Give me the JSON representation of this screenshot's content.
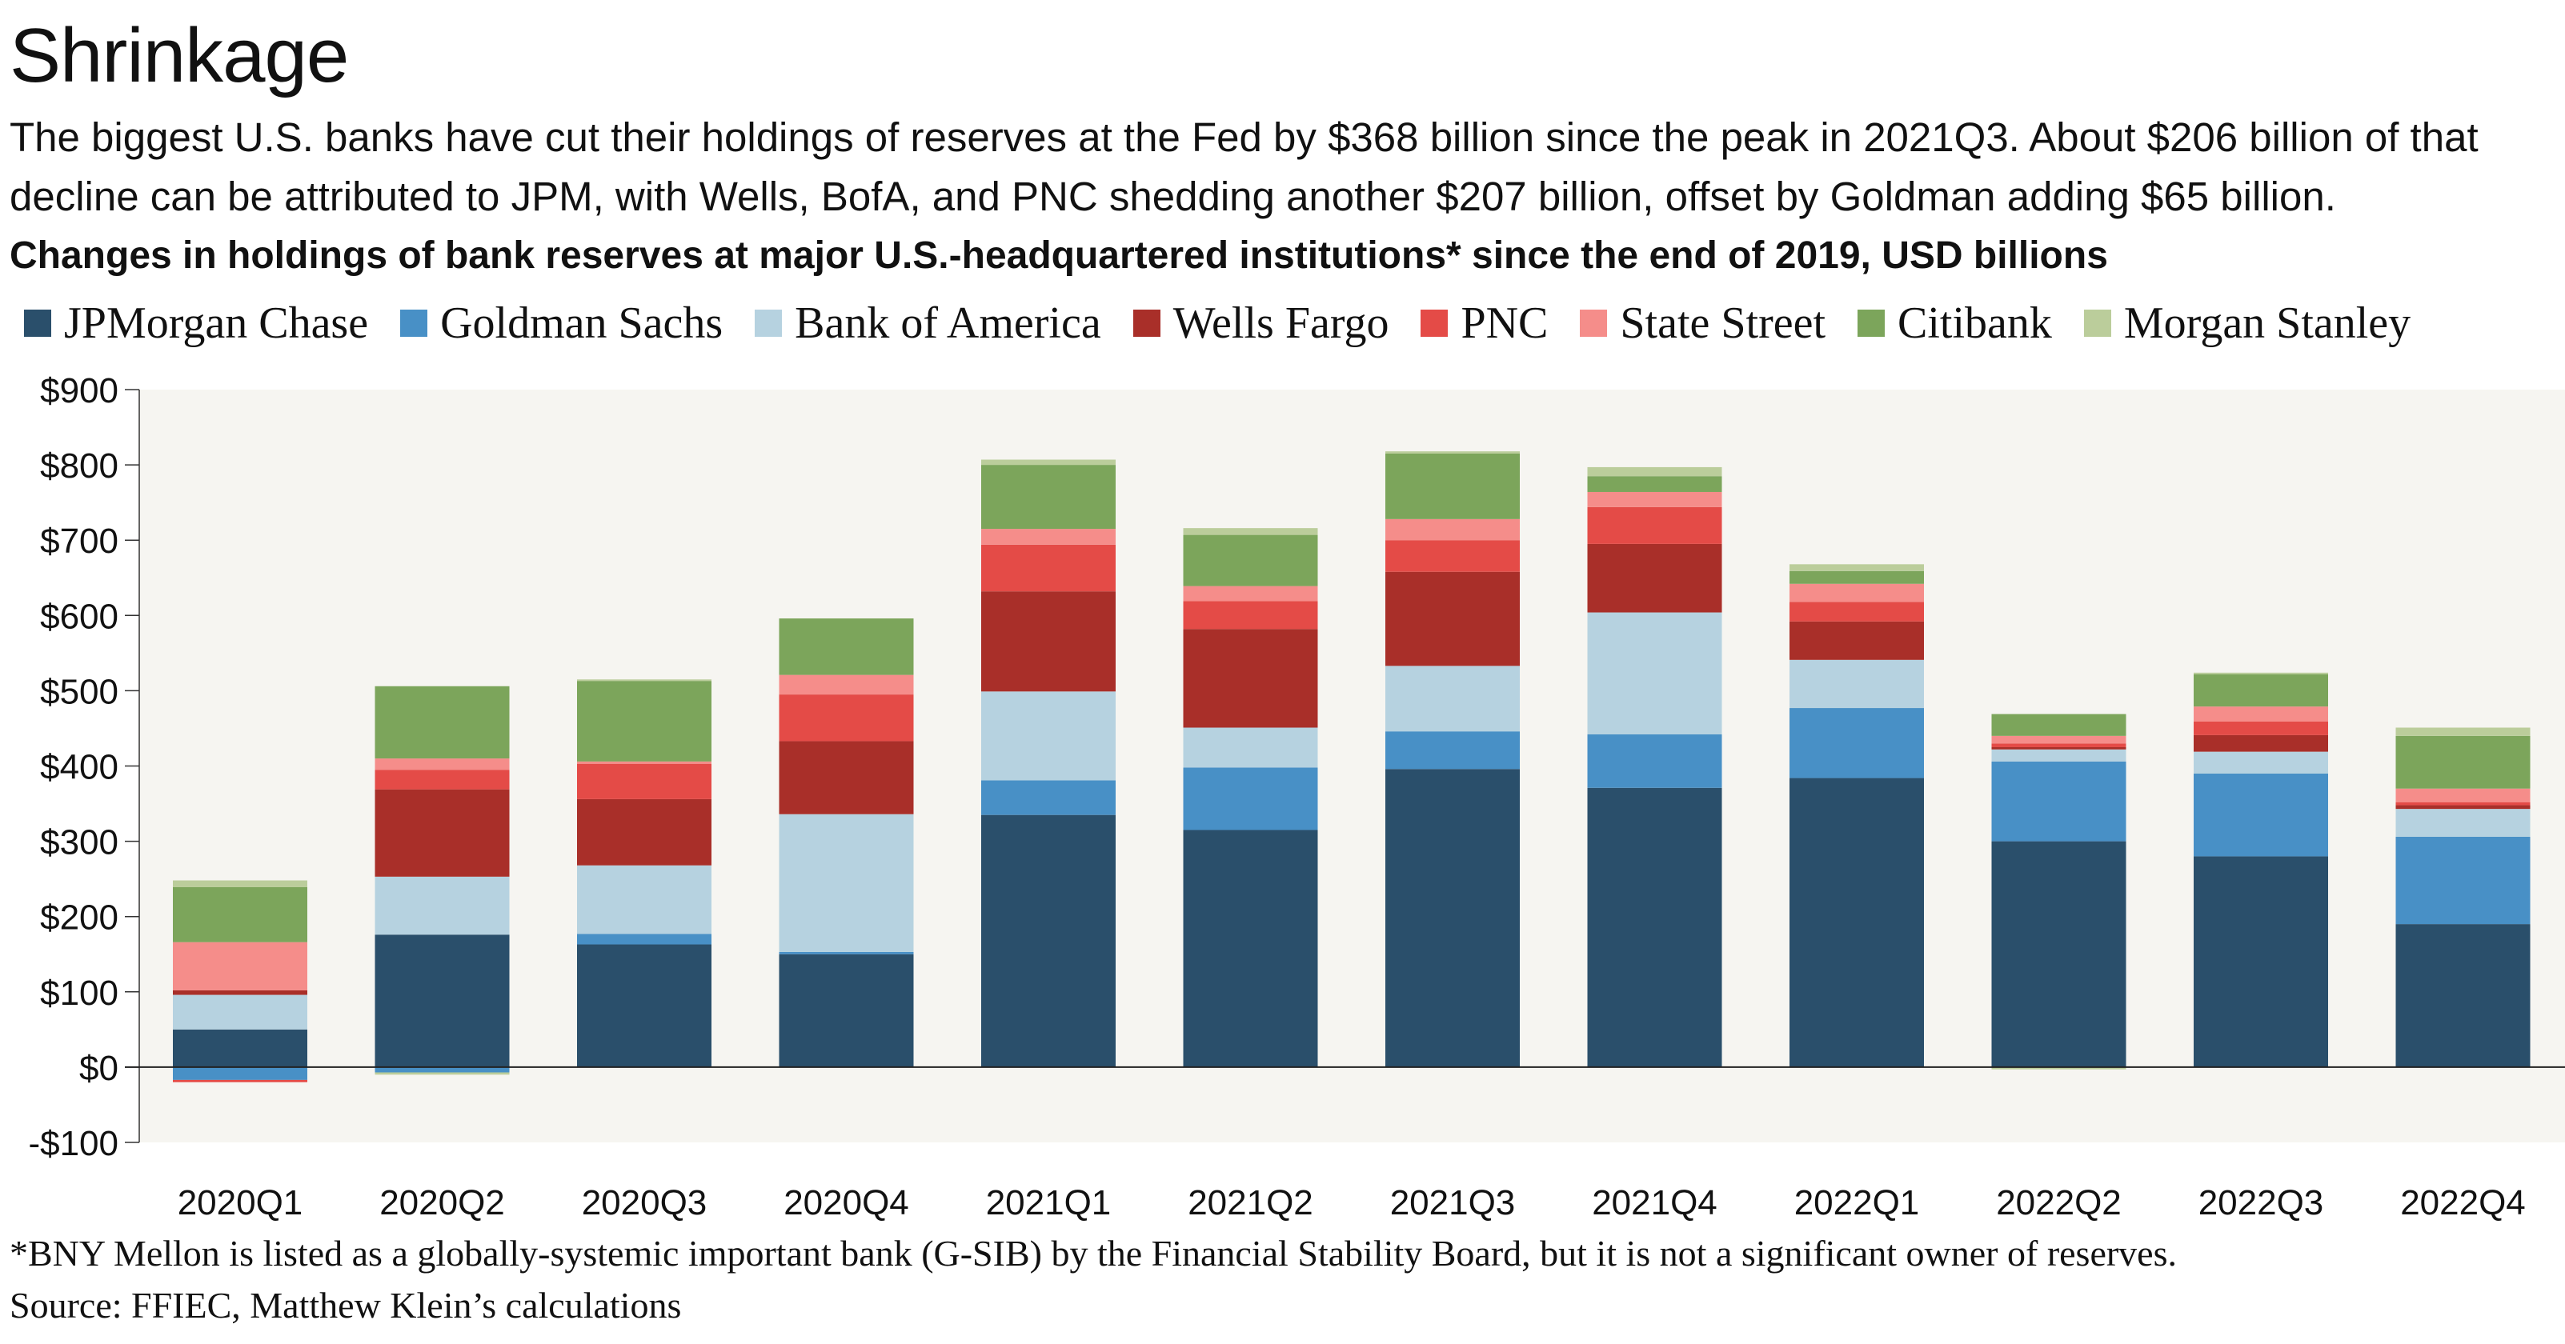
{
  "title": "Shrinkage",
  "subtitle_lines": [
    "The biggest U.S. banks have cut their holdings of reserves at the Fed by $368 billion since the peak in 2021Q3. About $206 billion of that",
    "decline can be attributed to JPM, with Wells, BofA, and PNC shedding another $207 billion, offset by Goldman adding $65 billion."
  ],
  "footnote": "*BNY Mellon is listed as a globally-systemic important bank (G-SIB) by the Financial Stability Board, but it is not a significant owner of reserves.",
  "source": "Source: FFIEC, Matthew Klein’s calculations",
  "chart_data": {
    "type": "bar",
    "stacked": true,
    "title": "Changes in holdings of bank reserves at major U.S.-headquartered institutions* since the end of 2019, USD billions",
    "xlabel": "",
    "ylabel": "",
    "ylim": [
      -100,
      900
    ],
    "yticks": [
      -100,
      0,
      100,
      200,
      300,
      400,
      500,
      600,
      700,
      800,
      900
    ],
    "ytick_labels": [
      "-$100",
      "$0",
      "$100",
      "$200",
      "$300",
      "$400",
      "$500",
      "$600",
      "$700",
      "$800",
      "$900"
    ],
    "grid": false,
    "legend_position": "top",
    "background": "#f6f5f1",
    "categories": [
      "2020Q1",
      "2020Q2",
      "2020Q3",
      "2020Q4",
      "2021Q1",
      "2021Q2",
      "2021Q3",
      "2021Q4",
      "2022Q1",
      "2022Q2",
      "2022Q3",
      "2022Q4"
    ],
    "series": [
      {
        "name": "JPMorgan Chase",
        "color": "#2a4f6b",
        "values": [
          50,
          176,
          163,
          150,
          335,
          315,
          396,
          371,
          384,
          300,
          280,
          190
        ]
      },
      {
        "name": "Goldman Sachs",
        "color": "#4890c6",
        "values": [
          -17,
          -7,
          14,
          3,
          46,
          83,
          50,
          71,
          93,
          106,
          110,
          116
        ]
      },
      {
        "name": "Bank of America",
        "color": "#b6d2e0",
        "values": [
          46,
          77,
          91,
          183,
          118,
          53,
          87,
          162,
          64,
          16,
          29,
          37
        ]
      },
      {
        "name": "Wells Fargo",
        "color": "#a92f29",
        "values": [
          6,
          116,
          88,
          97,
          133,
          131,
          125,
          91,
          51,
          3,
          22,
          5
        ]
      },
      {
        "name": "PNC",
        "color": "#e44b47",
        "values": [
          -3,
          26,
          47,
          62,
          62,
          37,
          42,
          49,
          26,
          5,
          18,
          4
        ]
      },
      {
        "name": "State Street",
        "color": "#f58d8a",
        "values": [
          64,
          15,
          3,
          26,
          21,
          20,
          28,
          20,
          24,
          10,
          20,
          18
        ]
      },
      {
        "name": "Citibank",
        "color": "#7ca55b",
        "values": [
          73,
          96,
          107,
          75,
          85,
          68,
          87,
          21,
          17,
          29,
          43,
          70
        ]
      },
      {
        "name": "Morgan Stanley",
        "color": "#bbcd9b",
        "values": [
          9,
          -3,
          2,
          0,
          7,
          9,
          3,
          12,
          9,
          -3,
          2,
          11
        ]
      }
    ]
  }
}
